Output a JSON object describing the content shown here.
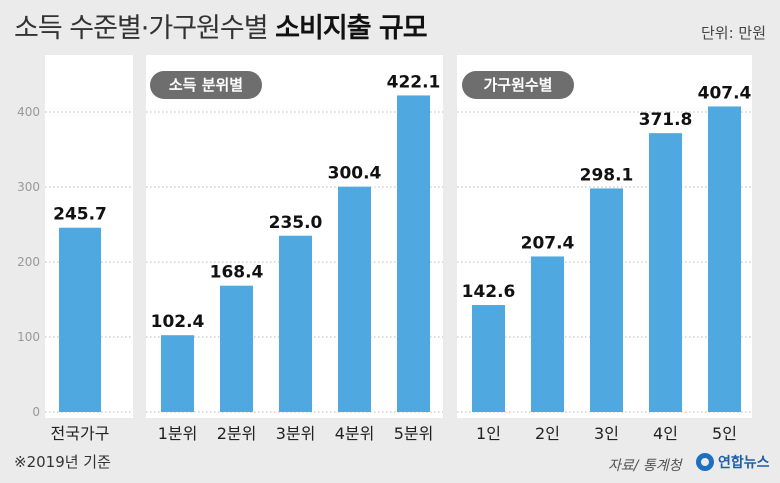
{
  "header": {
    "title_light": "소득 수준별·가구원수별",
    "title_bold": "소비지출 규모",
    "unit": "단위: 만원"
  },
  "footer": {
    "note": "※2019년 기준",
    "source": "자료/ 통계청",
    "logo_text": "연합뉴스"
  },
  "chart_data": [
    {
      "type": "bar",
      "title": "",
      "categories": [
        "전국가구"
      ],
      "values": [
        245.7
      ],
      "value_labels": [
        "245.7"
      ],
      "ylim": [
        0,
        440
      ],
      "yticks": [
        0,
        100,
        200,
        300,
        400
      ],
      "color": "#4fa8e0",
      "grid": true
    },
    {
      "type": "bar",
      "title": "소득 분위별",
      "categories": [
        "1분위",
        "2분위",
        "3분위",
        "4분위",
        "5분위"
      ],
      "values": [
        102.4,
        168.4,
        235.0,
        300.4,
        422.1
      ],
      "value_labels": [
        "102.4",
        "168.4",
        "235.0",
        "300.4",
        "422.1"
      ],
      "ylim": [
        0,
        440
      ],
      "color": "#4fa8e0",
      "grid": true
    },
    {
      "type": "bar",
      "title": "가구원수별",
      "categories": [
        "1인",
        "2인",
        "3인",
        "4인",
        "5인"
      ],
      "values": [
        142.6,
        207.4,
        298.1,
        371.8,
        407.4
      ],
      "value_labels": [
        "142.6",
        "207.4",
        "298.1",
        "371.8",
        "407.4"
      ],
      "ylim": [
        0,
        440
      ],
      "color": "#4fa8e0",
      "grid": true
    }
  ]
}
